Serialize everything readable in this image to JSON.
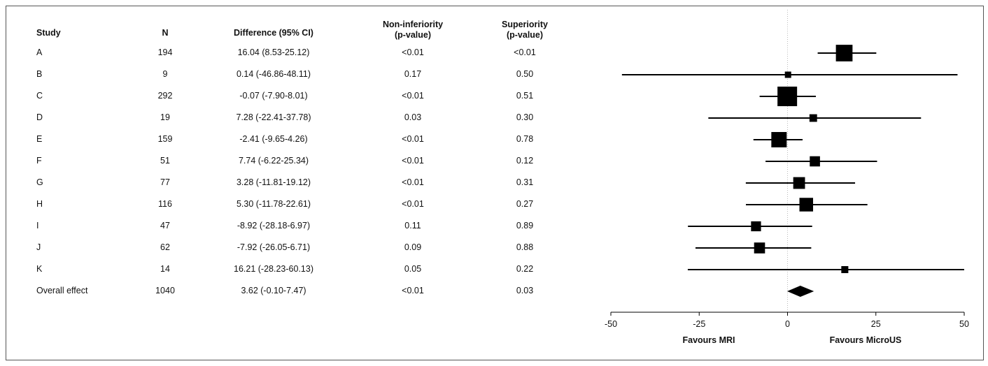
{
  "chart_data": {
    "type": "forest",
    "columns": {
      "study": "Study",
      "n": "N",
      "difference": "Difference (95% CI)",
      "non_inferiority": [
        "Non-inferiority",
        "(p-value)"
      ],
      "superiority": [
        "Superiority",
        "(p-value)"
      ]
    },
    "rows": [
      {
        "study": "A",
        "n": "194",
        "ci_text": "16.04 (8.53-25.12)",
        "non_inf": "<0.01",
        "sup": "<0.01",
        "est": 16.04,
        "lo": 8.53,
        "hi": 25.12,
        "weight": 19.4
      },
      {
        "study": "B",
        "n": "9",
        "ci_text": "0.14 (-46.86-48.11)",
        "non_inf": "0.17",
        "sup": "0.50",
        "est": 0.14,
        "lo": -46.86,
        "hi": 48.11,
        "weight": 0.9
      },
      {
        "study": "C",
        "n": "292",
        "ci_text": "-0.07 (-7.90-8.01)",
        "non_inf": "<0.01",
        "sup": "0.51",
        "est": -0.07,
        "lo": -7.9,
        "hi": 8.01,
        "weight": 29.2
      },
      {
        "study": "D",
        "n": "19",
        "ci_text": "7.28 (-22.41-37.78)",
        "non_inf": "0.03",
        "sup": "0.30",
        "est": 7.28,
        "lo": -22.41,
        "hi": 37.78,
        "weight": 1.9
      },
      {
        "study": "E",
        "n": "159",
        "ci_text": "-2.41 (-9.65-4.26)",
        "non_inf": "<0.01",
        "sup": "0.78",
        "est": -2.41,
        "lo": -9.65,
        "hi": 4.26,
        "weight": 15.9
      },
      {
        "study": "F",
        "n": "51",
        "ci_text": "7.74 (-6.22-25.34)",
        "non_inf": "<0.01",
        "sup": "0.12",
        "est": 7.74,
        "lo": -6.22,
        "hi": 25.34,
        "weight": 5.1
      },
      {
        "study": "G",
        "n": "77",
        "ci_text": "3.28 (-11.81-19.12)",
        "non_inf": "<0.01",
        "sup": "0.31",
        "est": 3.28,
        "lo": -11.81,
        "hi": 19.12,
        "weight": 7.7
      },
      {
        "study": "H",
        "n": "116",
        "ci_text": "5.30 (-11.78-22.61)",
        "non_inf": "<0.01",
        "sup": "0.27",
        "est": 5.3,
        "lo": -11.78,
        "hi": 22.61,
        "weight": 11.6
      },
      {
        "study": "I",
        "n": "47",
        "ci_text": "-8.92 (-28.18-6.97)",
        "non_inf": "0.11",
        "sup": "0.89",
        "est": -8.92,
        "lo": -28.18,
        "hi": 6.97,
        "weight": 4.7
      },
      {
        "study": "J",
        "n": "62",
        "ci_text": "-7.92 (-26.05-6.71)",
        "non_inf": "0.09",
        "sup": "0.88",
        "est": -7.92,
        "lo": -26.05,
        "hi": 6.71,
        "weight": 6.2
      },
      {
        "study": "K",
        "n": "14",
        "ci_text": "16.21 (-28.23-60.13)",
        "non_inf": "0.05",
        "sup": "0.22",
        "est": 16.21,
        "lo": -28.23,
        "hi": 60.13,
        "weight": 1.4
      }
    ],
    "overall": {
      "study": "Overall effect",
      "n": "1040",
      "ci_text": "3.62 (-0.10-7.47)",
      "non_inf": "<0.01",
      "sup": "0.03",
      "est": 3.62,
      "lo": -0.1,
      "hi": 7.47
    },
    "xlim": [
      -50,
      50
    ],
    "xticks": [
      -50,
      -25,
      0,
      25,
      50
    ],
    "reference_line": 0,
    "favours_left": "Favours MRI",
    "favours_right": "Favours MicroUS",
    "colors": {
      "marker": "#000000",
      "reference": "#bbbbbb",
      "frame": "#555555"
    }
  }
}
